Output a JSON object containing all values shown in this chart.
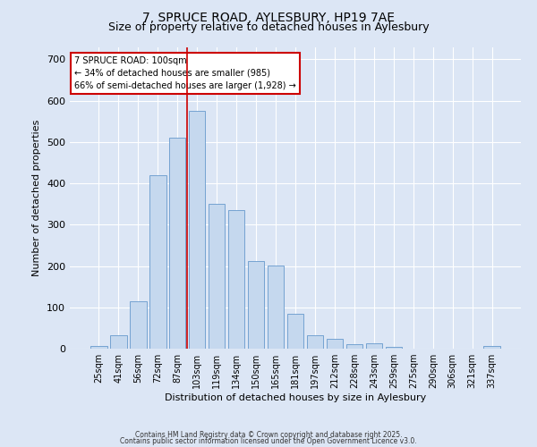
{
  "title1": "7, SPRUCE ROAD, AYLESBURY, HP19 7AE",
  "title2": "Size of property relative to detached houses in Aylesbury",
  "xlabel": "Distribution of detached houses by size in Aylesbury",
  "ylabel": "Number of detached properties",
  "categories": [
    "25sqm",
    "41sqm",
    "56sqm",
    "72sqm",
    "87sqm",
    "103sqm",
    "119sqm",
    "134sqm",
    "150sqm",
    "165sqm",
    "181sqm",
    "197sqm",
    "212sqm",
    "228sqm",
    "243sqm",
    "259sqm",
    "275sqm",
    "290sqm",
    "306sqm",
    "321sqm",
    "337sqm"
  ],
  "values": [
    7,
    33,
    114,
    420,
    510,
    575,
    350,
    335,
    212,
    202,
    85,
    33,
    23,
    10,
    12,
    4,
    0,
    0,
    0,
    0,
    6
  ],
  "bar_color": "#c5d8ee",
  "bar_edge_color": "#6699cc",
  "marker_line_color": "#cc0000",
  "annotation_text": "7 SPRUCE ROAD: 100sqm\n← 34% of detached houses are smaller (985)\n66% of semi-detached houses are larger (1,928) →",
  "annotation_box_color": "#ffffff",
  "annotation_box_edge_color": "#cc0000",
  "ylim": [
    0,
    730
  ],
  "yticks": [
    0,
    100,
    200,
    300,
    400,
    500,
    600,
    700
  ],
  "background_color": "#dce6f5",
  "footer_text1": "Contains HM Land Registry data © Crown copyright and database right 2025.",
  "footer_text2": "Contains public sector information licensed under the Open Government Licence v3.0."
}
